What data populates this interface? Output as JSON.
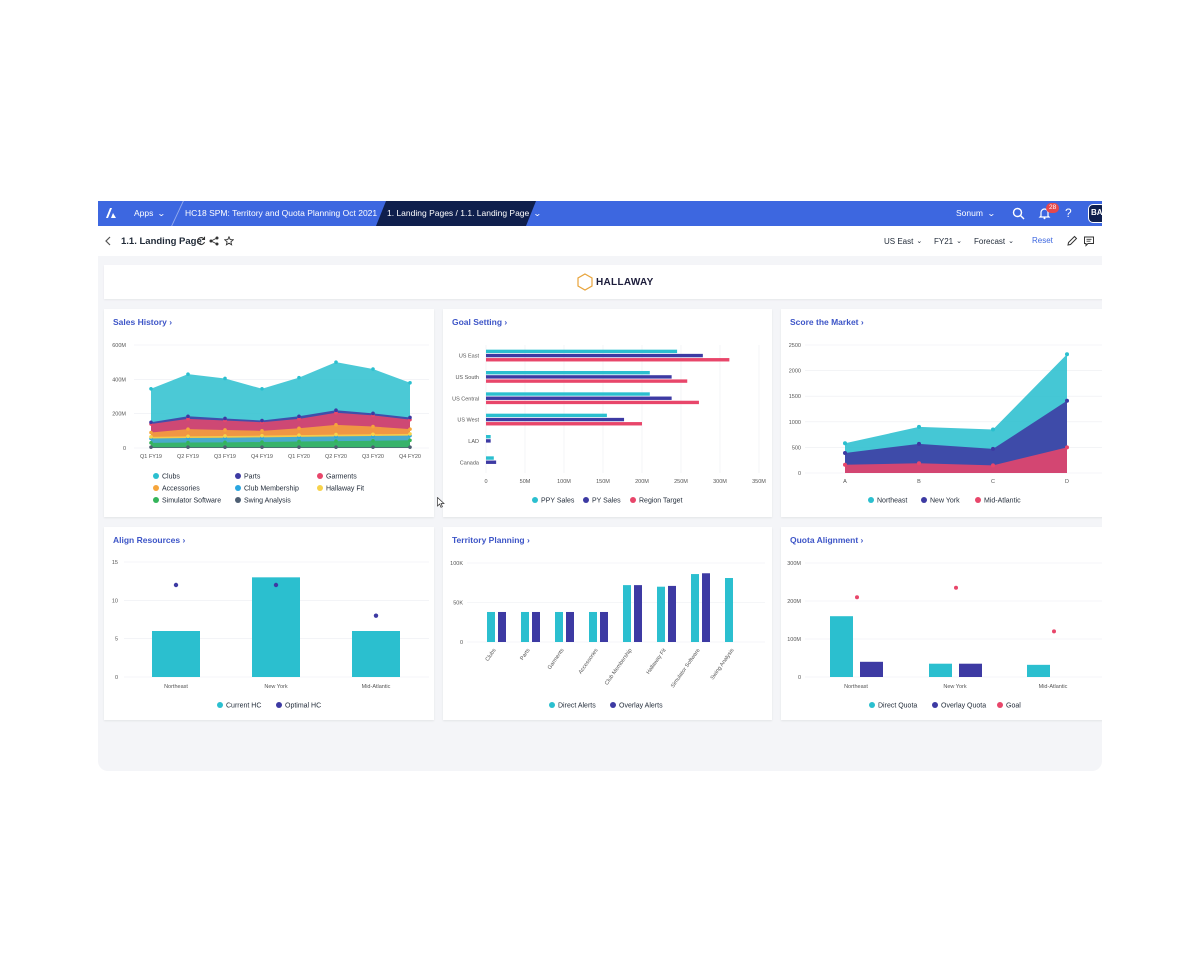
{
  "topbar": {
    "apps_label": "Apps",
    "breadcrumb_app": "HC18 SPM: Territory and Quota Planning Oct 2021",
    "breadcrumb_page": "1. Landing Pages / 1.1. Landing Page",
    "user_label": "Sonum",
    "notification_count": "28",
    "help_label": "?",
    "avatar_initials": "BA"
  },
  "toolbar": {
    "page_title": "1.1. Landing Page",
    "filter_region": "US East",
    "filter_year": "FY21",
    "filter_version": "Forecast",
    "reset_label": "Reset"
  },
  "banner": {
    "brand": "HALLAWAY"
  },
  "colors": {
    "topbar": "#3d67e0",
    "active_tab": "#0f1f4d",
    "link": "#3d55c7",
    "teal": "#2bbfcf",
    "indigo": "#3d3aa3",
    "pink": "#e8466a",
    "orange": "#f6a53b",
    "blue": "#2aa6e0",
    "green": "#34b45a",
    "slate": "#4e5f73",
    "yellow": "#f7d24a"
  },
  "cards": {
    "sales_history": {
      "title": "Sales History"
    },
    "goal_setting": {
      "title": "Goal Setting"
    },
    "score_market": {
      "title": "Score the Market"
    },
    "align_resources": {
      "title": "Align Resources"
    },
    "territory_planning": {
      "title": "Territory Planning"
    },
    "quota_alignment": {
      "title": "Quota Alignment"
    }
  },
  "chart_data": [
    {
      "id": "sales_history",
      "type": "area",
      "categories": [
        "Q1 FY19",
        "Q2 FY19",
        "Q3 FY19",
        "Q4 FY19",
        "Q1 FY20",
        "Q2 FY20",
        "Q3 FY20",
        "Q4 FY20"
      ],
      "y_ticks": [
        "600M",
        "400M",
        "200M",
        "0"
      ],
      "ylim": [
        0,
        600
      ],
      "series": [
        {
          "name": "Swing Analysis",
          "color": "#4e5f73",
          "values": [
            5,
            5,
            5,
            5,
            5,
            5,
            5,
            5
          ]
        },
        {
          "name": "Simulator Software",
          "color": "#34b45a",
          "values": [
            30,
            32,
            33,
            35,
            38,
            40,
            42,
            45
          ]
        },
        {
          "name": "Club Membership",
          "color": "#2aa6e0",
          "values": [
            55,
            58,
            60,
            62,
            65,
            68,
            70,
            72
          ]
        },
        {
          "name": "Hallaway Fit",
          "color": "#f7d24a",
          "values": [
            65,
            68,
            70,
            72,
            75,
            78,
            80,
            82
          ]
        },
        {
          "name": "Accessories",
          "color": "#f6a53b",
          "values": [
            90,
            110,
            105,
            100,
            115,
            135,
            125,
            110
          ]
        },
        {
          "name": "Garments",
          "color": "#e8466a",
          "values": [
            140,
            170,
            160,
            150,
            170,
            205,
            190,
            165
          ]
        },
        {
          "name": "Parts",
          "color": "#3d3aa3",
          "values": [
            150,
            185,
            172,
            160,
            185,
            220,
            202,
            178
          ]
        },
        {
          "name": "Clubs",
          "color": "#2bbfcf",
          "values": [
            345,
            430,
            405,
            345,
            410,
            500,
            460,
            380
          ]
        }
      ],
      "legend": [
        [
          "Clubs",
          "Parts",
          "Garments"
        ],
        [
          "Accessories",
          "Club Membership",
          "Hallaway Fit"
        ],
        [
          "Simulator Software",
          "Swing Analysis"
        ]
      ]
    },
    {
      "id": "goal_setting",
      "type": "bar",
      "orientation": "horizontal",
      "categories": [
        "US East",
        "US South",
        "US Central",
        "US West",
        "LAD",
        "Canada"
      ],
      "x_ticks": [
        "0",
        "50M",
        "100M",
        "150M",
        "200M",
        "250M",
        "300M",
        "350M"
      ],
      "xlim": [
        0,
        350
      ],
      "series": [
        {
          "name": "PPY Sales",
          "color": "#2bbfcf",
          "values": [
            245,
            210,
            210,
            155,
            6,
            10
          ]
        },
        {
          "name": "PY Sales",
          "color": "#3d3aa3",
          "values": [
            278,
            238,
            238,
            177,
            6,
            13
          ]
        },
        {
          "name": "Region Target",
          "color": "#e8466a",
          "values": [
            312,
            258,
            273,
            200,
            0,
            0
          ]
        }
      ]
    },
    {
      "id": "score_market",
      "type": "area",
      "categories": [
        "A",
        "B",
        "C",
        "D"
      ],
      "y_ticks": [
        "2500",
        "2000",
        "1500",
        "1000",
        "500",
        "0"
      ],
      "ylim": [
        0,
        2500
      ],
      "series": [
        {
          "name": "Northeast",
          "color": "#2bbfcf",
          "values": [
            580,
            900,
            850,
            2320
          ]
        },
        {
          "name": "New York",
          "color": "#3d3aa3",
          "values": [
            390,
            570,
            470,
            1410
          ]
        },
        {
          "name": "Mid-Atlantic",
          "color": "#e8466a",
          "values": [
            160,
            190,
            150,
            500
          ]
        }
      ]
    },
    {
      "id": "align_resources",
      "type": "bar",
      "categories": [
        "Northeast",
        "New York",
        "Mid-Atlantic"
      ],
      "y_ticks": [
        "15",
        "10",
        "5",
        "0"
      ],
      "ylim": [
        0,
        15
      ],
      "series": [
        {
          "name": "Current HC",
          "color": "#2bbfcf",
          "kind": "bar",
          "values": [
            6,
            13,
            6
          ]
        },
        {
          "name": "Optimal HC",
          "color": "#3d3aa3",
          "kind": "dot",
          "values": [
            12,
            12,
            8
          ]
        }
      ]
    },
    {
      "id": "territory_planning",
      "type": "bar",
      "categories": [
        "Clubs",
        "Parts",
        "Garments",
        "Accessories",
        "Club Membership",
        "Hallaway Fit",
        "Simulator Software",
        "Swing Analysis"
      ],
      "y_ticks": [
        "100K",
        "50K",
        "0"
      ],
      "ylim": [
        0,
        100
      ],
      "series": [
        {
          "name": "Direct Alerts",
          "color": "#2bbfcf",
          "values": [
            38,
            38,
            38,
            38,
            72,
            70,
            86,
            81
          ]
        },
        {
          "name": "Overlay Alerts",
          "color": "#3d3aa3",
          "values": [
            38,
            38,
            38,
            38,
            72,
            71,
            87,
            0
          ]
        }
      ]
    },
    {
      "id": "quota_alignment",
      "type": "bar",
      "categories": [
        "Northeast",
        "New York",
        "Mid-Atlantic"
      ],
      "y_ticks": [
        "300M",
        "200M",
        "100M",
        "0"
      ],
      "ylim": [
        0,
        300
      ],
      "series": [
        {
          "name": "Direct Quota",
          "color": "#2bbfcf",
          "kind": "bar",
          "values": [
            160,
            35,
            32
          ]
        },
        {
          "name": "Overlay Quota",
          "color": "#3d3aa3",
          "kind": "bar",
          "values": [
            40,
            35,
            0
          ]
        },
        {
          "name": "Goal",
          "color": "#e8466a",
          "kind": "dot",
          "values": [
            210,
            235,
            120
          ]
        }
      ]
    }
  ]
}
